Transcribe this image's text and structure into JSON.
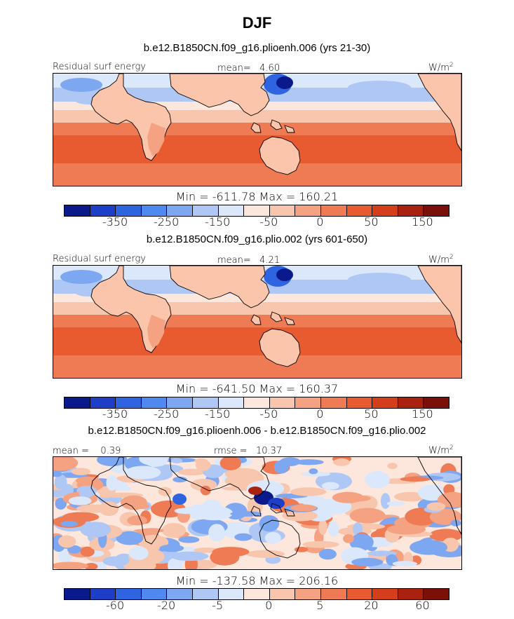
{
  "title": "DJF",
  "palette": [
    "#0a1a8c",
    "#1d3ec8",
    "#2e64e0",
    "#4f88ee",
    "#7ea7f1",
    "#aec7f5",
    "#dbe8fb",
    "#fde7dc",
    "#f8c6ad",
    "#f4a282",
    "#ef7b55",
    "#e85a30",
    "#d43e1a",
    "#a8220f",
    "#7a1008"
  ],
  "land_color": "#fbc5ab",
  "panels": [
    {
      "subtitle": "b.e12.B1850CN.f09_g16.plioenh.006 (yrs 21-30)",
      "left_label": "Residual surf energy",
      "mid_label": "mean=   4.60",
      "units": "W/m",
      "units_sup": "2",
      "minmax": "Min = -611.78 Max = 160.21",
      "ticks": [
        "-350",
        "-250",
        "-150",
        "-50",
        "0",
        "50",
        "150"
      ],
      "style": "field"
    },
    {
      "subtitle": "b.e12.B1850CN.f09_g16.plio.002 (yrs 601-650)",
      "left_label": "Residual surf energy",
      "mid_label": "mean=   4.21",
      "units": "W/m",
      "units_sup": "2",
      "minmax": "Min = -641.50 Max = 160.37",
      "ticks": [
        "-350",
        "-250",
        "-150",
        "-50",
        "0",
        "50",
        "150"
      ],
      "style": "field"
    },
    {
      "subtitle": "b.e12.B1850CN.f09_g16.plioenh.006 - b.e12.B1850CN.f09_g16.plio.002",
      "left_label": "mean =    0.39",
      "mid_label": "rmse =   10.37",
      "units": "W/m",
      "units_sup": "2",
      "minmax": "Min = -137.58 Max = 206.16",
      "ticks": [
        "-60",
        "-20",
        "-5",
        "0",
        "5",
        "20",
        "60"
      ],
      "style": "diff"
    }
  ]
}
